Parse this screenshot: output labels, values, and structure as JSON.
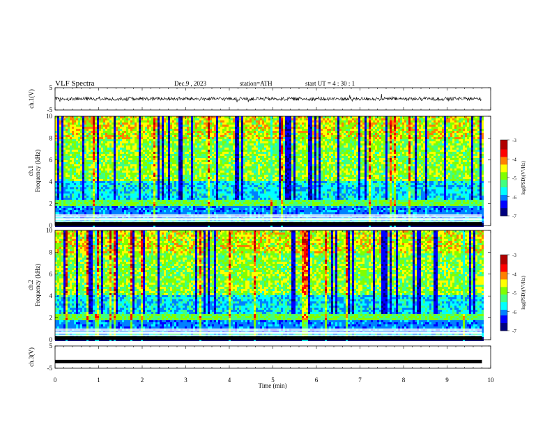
{
  "header": {
    "title": "VLF  Spectra",
    "date": "Dec.9  , 2023",
    "station": "station=ATH",
    "start_ut": "start  UT  =   4  : 30 : 1"
  },
  "chart_data": [
    {
      "type": "line",
      "panel": "ch1",
      "ylabel": "ch.1(V)",
      "ylim": [
        -5,
        5
      ],
      "yticks": [
        "5",
        "-5"
      ],
      "xlim": [
        0,
        10
      ],
      "x_end": 9.8,
      "baseline": 0,
      "noise_amplitude": 0.8,
      "color": "#000000"
    },
    {
      "type": "heatmap",
      "panel": "ch1-spectrogram",
      "ylabel": "ch.1\nFrequency  (kHz)",
      "ylim": [
        0,
        10
      ],
      "yticks": [
        "0",
        "2",
        "4",
        "6",
        "8",
        "10"
      ],
      "xlim": [
        0,
        10
      ],
      "x_end": 9.8,
      "colorbar": {
        "label": "log(PSD)(V²/Hz)",
        "range": [
          -7,
          -3
        ],
        "ticks": [
          "-3",
          "-4",
          "-5",
          "-6",
          "-7"
        ]
      }
    },
    {
      "type": "heatmap",
      "panel": "ch2-spectrogram",
      "ylabel": "ch.2\nFrequency  (kHz)",
      "ylim": [
        0,
        10
      ],
      "yticks": [
        "0",
        "2",
        "4",
        "6",
        "8",
        "10"
      ],
      "xlim": [
        0,
        10
      ],
      "x_end": 9.8,
      "colorbar": {
        "label": "log(PSD)(V²/Hz)",
        "range": [
          -7,
          -3
        ],
        "ticks": [
          "-3",
          "-4",
          "-5",
          "-6",
          "-7"
        ]
      }
    },
    {
      "type": "line",
      "panel": "ch3",
      "ylabel": "ch.3(V)",
      "ylim": [
        -5,
        5
      ],
      "yticks": [
        "5",
        "-5"
      ],
      "xlim": [
        0,
        10
      ],
      "x_end": 9.8,
      "baseline": -2,
      "color": "#000000"
    }
  ],
  "xaxis": {
    "label": "Time  (min)",
    "ticks": [
      "0",
      "1",
      "2",
      "3",
      "4",
      "5",
      "6",
      "7",
      "8",
      "9",
      "10"
    ]
  },
  "colormap": [
    "#00007f",
    "#0000ff",
    "#0080ff",
    "#00ffff",
    "#40ff80",
    "#80ff00",
    "#ffff00",
    "#ff8000",
    "#ff0000",
    "#b00000",
    "#ffffff"
  ]
}
